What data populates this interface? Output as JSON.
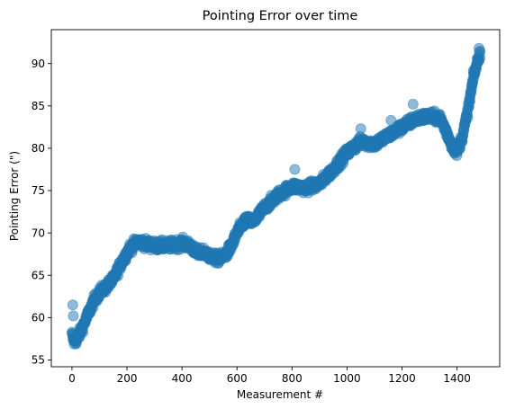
{
  "chart_data": {
    "type": "scatter",
    "title": "Pointing Error over time",
    "xlabel": "Measurement #",
    "ylabel": "Pointing Error (\")",
    "xlim": [
      -75,
      1555
    ],
    "ylim": [
      54.2,
      94.0
    ],
    "xticks": [
      0,
      200,
      400,
      600,
      800,
      1000,
      1200,
      1400
    ],
    "yticks": [
      55,
      60,
      65,
      70,
      75,
      80,
      85,
      90
    ],
    "grid": false,
    "legend": "none",
    "point_count": 1485,
    "trend_x": [
      0,
      8,
      20,
      40,
      60,
      80,
      100,
      120,
      150,
      180,
      210,
      240,
      260,
      300,
      350,
      400,
      430,
      460,
      480,
      500,
      520,
      540,
      560,
      580,
      600,
      630,
      660,
      700,
      750,
      800,
      850,
      900,
      950,
      1000,
      1050,
      1100,
      1150,
      1200,
      1250,
      1300,
      1340,
      1360,
      1380,
      1400,
      1420,
      1440,
      1460,
      1485
    ],
    "trend_y": [
      58.0,
      57.2,
      57.5,
      59.0,
      60.5,
      62.0,
      63.0,
      63.5,
      64.5,
      66.5,
      68.2,
      69.0,
      68.8,
      68.5,
      68.5,
      68.8,
      68.5,
      67.5,
      67.8,
      67.3,
      67.0,
      67.0,
      67.5,
      68.5,
      70.0,
      71.5,
      71.3,
      73.0,
      74.5,
      75.5,
      75.3,
      75.8,
      77.5,
      79.5,
      80.8,
      80.5,
      81.5,
      82.5,
      83.5,
      83.8,
      83.5,
      82.0,
      80.5,
      79.5,
      81.5,
      84.5,
      88.5,
      91.5
    ],
    "outliers": [
      [
        3,
        61.5
      ],
      [
        5,
        60.2
      ],
      [
        810,
        77.5
      ],
      [
        1050,
        82.3
      ],
      [
        1160,
        83.3
      ],
      [
        1240,
        85.2
      ],
      [
        1380,
        80.5
      ],
      [
        1480,
        91.8
      ]
    ],
    "marker_color": "#1f77b4",
    "marker_alpha": 0.5
  }
}
